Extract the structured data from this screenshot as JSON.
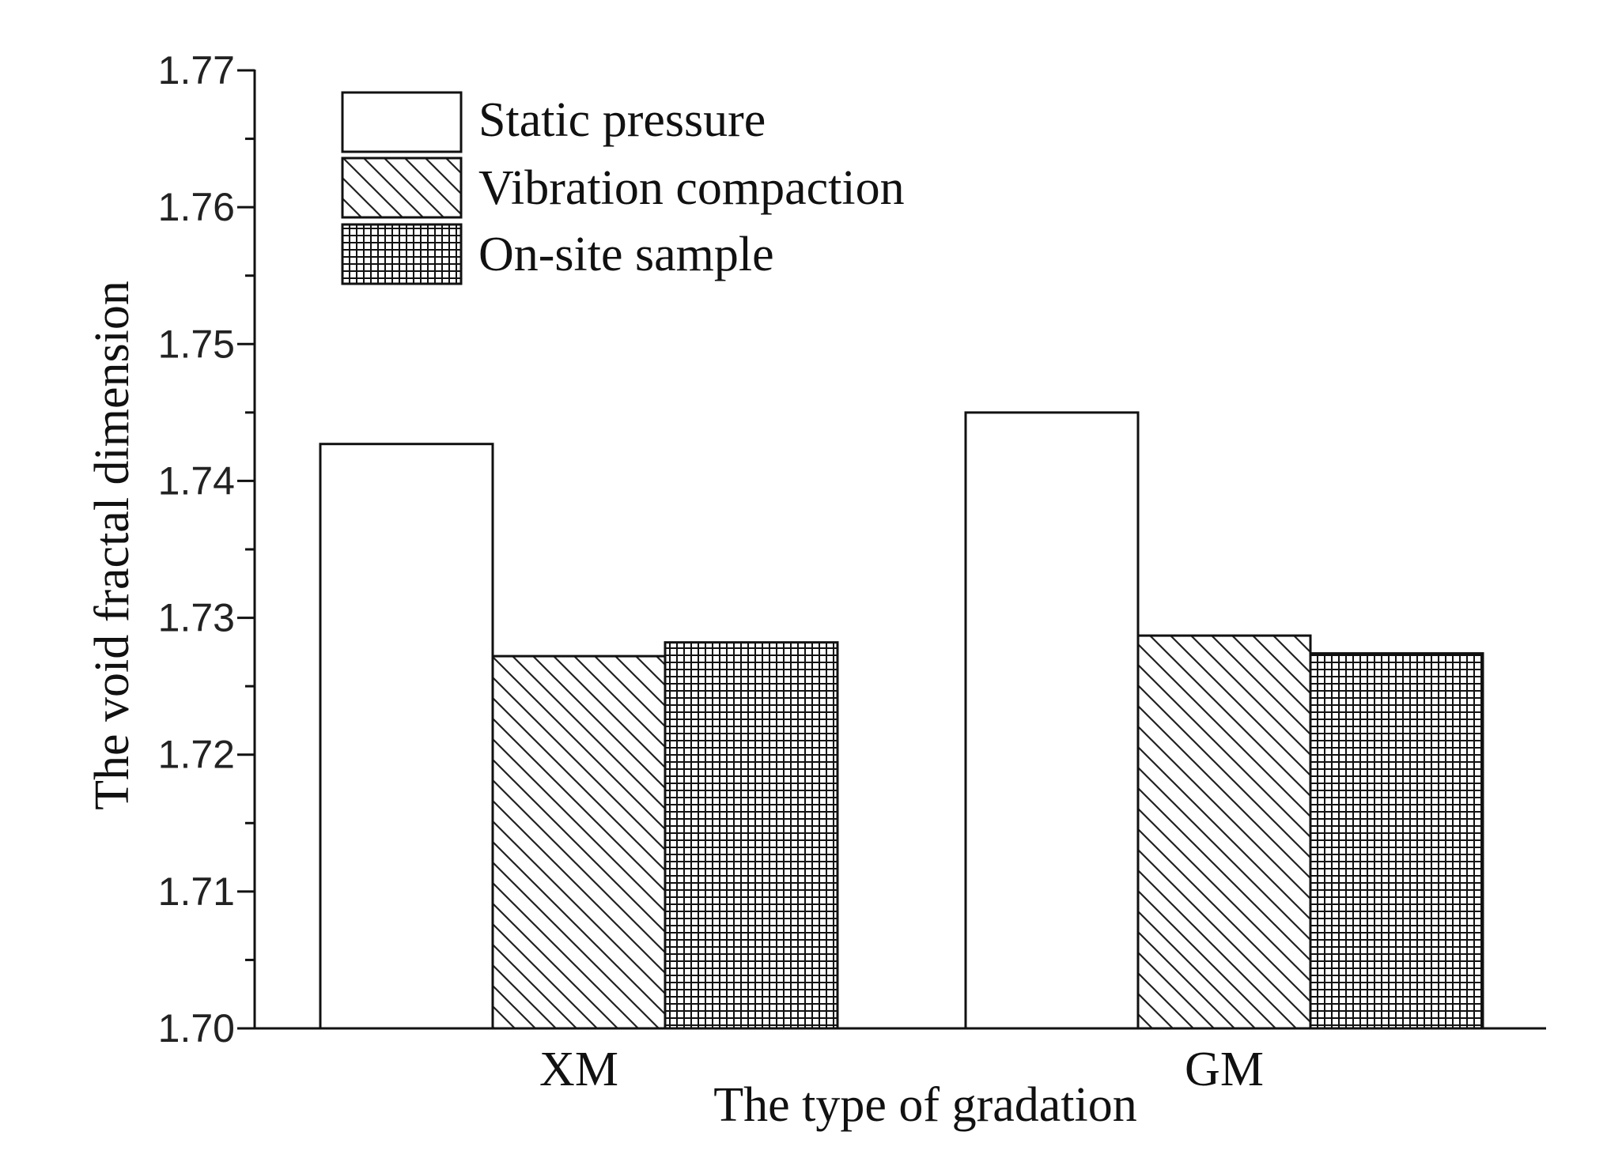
{
  "chart_data": {
    "type": "bar",
    "title": "",
    "xlabel": "The type of gradation",
    "ylabel": "The void fractal dimension",
    "categories": [
      "XM",
      "GM"
    ],
    "series": [
      {
        "name": "Static pressure",
        "pattern": "none",
        "values": [
          1.7427,
          1.745
        ]
      },
      {
        "name": "Vibration compaction",
        "pattern": "diagonal",
        "values": [
          1.7272,
          1.7287
        ]
      },
      {
        "name": "On-site sample",
        "pattern": "grid",
        "values": [
          1.7282,
          1.7274
        ]
      }
    ],
    "ylim": [
      1.7,
      1.77
    ],
    "yticks": [
      "1.70",
      "1.71",
      "1.72",
      "1.73",
      "1.74",
      "1.75",
      "1.76",
      "1.77"
    ],
    "legend_position": "top-left",
    "grid": false
  }
}
